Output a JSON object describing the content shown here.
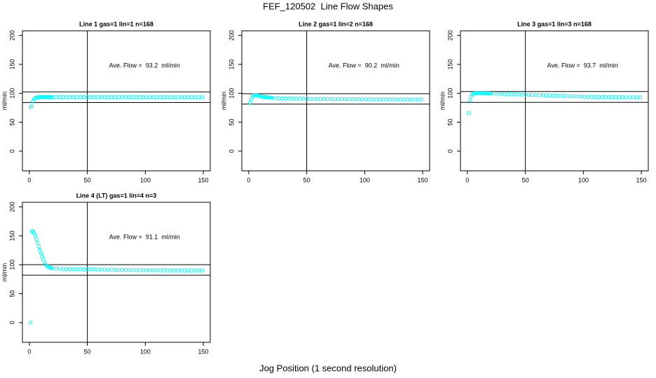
{
  "title": "FEF_120502  Line Flow Shapes",
  "xlabel": "Jog Position (1 second resolution)",
  "chart_data": [
    {
      "type": "scatter",
      "title": "Line 1 gas=1 lin=1 n=168",
      "ylabel": "ml/min",
      "annotation": "Ave. Flow =  93.2  ml/min",
      "color": "#00ffff",
      "xlim": [
        -6,
        156
      ],
      "ylim": [
        -34,
        208
      ],
      "xticks": [
        0,
        50,
        100,
        150
      ],
      "yticks": [
        0,
        50,
        100,
        150,
        200
      ],
      "hlines": [
        102.5,
        83.9
      ],
      "vline": 50,
      "x": [
        1,
        2,
        3,
        4,
        5,
        6,
        7,
        8,
        9,
        10,
        11,
        12,
        13,
        14,
        15,
        16,
        17,
        18,
        19,
        20,
        23,
        26,
        29,
        32,
        35,
        38,
        41,
        44,
        47,
        50,
        53,
        56,
        59,
        62,
        65,
        68,
        71,
        74,
        77,
        80,
        83,
        86,
        89,
        92,
        95,
        98,
        101,
        104,
        107,
        110,
        113,
        116,
        119,
        122,
        125,
        128,
        131,
        134,
        137,
        140,
        143,
        146,
        149
      ],
      "values": [
        76,
        78,
        86,
        90,
        92,
        92.8,
        93.2,
        93.4,
        93.5,
        93.5,
        93.5,
        93.5,
        93.5,
        93.5,
        93.5,
        93.5,
        93.5,
        93.5,
        93.5,
        93.5,
        93.5,
        93.5,
        93.5,
        93.5,
        93.5,
        93.5,
        93.5,
        93.5,
        93.5,
        93.5,
        93.5,
        93.4,
        93.4,
        93.4,
        93.4,
        93.4,
        93.4,
        93.4,
        93.4,
        93.4,
        93.4,
        93.4,
        93.4,
        93.4,
        93.4,
        93.3,
        93.3,
        93.3,
        93.3,
        93.3,
        93.3,
        93.3,
        93.3,
        93.3,
        93.3,
        93.3,
        93.3,
        93.3,
        93.3,
        93.3,
        93.3,
        93.3,
        93.3
      ]
    },
    {
      "type": "scatter",
      "title": "Line 2 gas=1 lin=2 n=168",
      "ylabel": "ml/min",
      "annotation": "Ave. Flow =  90.2  ml/min",
      "color": "#00ffff",
      "xlim": [
        -6,
        156
      ],
      "ylim": [
        -34,
        208
      ],
      "xticks": [
        0,
        50,
        100,
        150
      ],
      "yticks": [
        0,
        50,
        100,
        150,
        200
      ],
      "hlines": [
        99.2,
        81.2
      ],
      "vline": 50,
      "x": [
        1,
        2,
        3,
        4,
        5,
        6,
        7,
        8,
        9,
        10,
        11,
        12,
        13,
        14,
        15,
        16,
        17,
        18,
        19,
        20,
        23,
        26,
        29,
        32,
        35,
        38,
        41,
        44,
        47,
        50,
        53,
        56,
        59,
        62,
        65,
        68,
        71,
        74,
        77,
        80,
        83,
        86,
        89,
        92,
        95,
        98,
        101,
        104,
        107,
        110,
        113,
        116,
        119,
        122,
        125,
        128,
        131,
        134,
        137,
        140,
        143,
        146,
        149
      ],
      "values": [
        84,
        90,
        95,
        96.5,
        97,
        97,
        96.5,
        96,
        95.5,
        95,
        94.7,
        94.3,
        94,
        93.7,
        93.4,
        93.1,
        92.9,
        92.7,
        92.5,
        92.3,
        92,
        91.7,
        91.4,
        91.2,
        91,
        90.9,
        90.8,
        90.7,
        90.6,
        90.5,
        90.4,
        90.3,
        90.3,
        90.2,
        90.2,
        90.1,
        90.1,
        90,
        90,
        90,
        89.9,
        89.9,
        89.9,
        89.8,
        89.8,
        89.8,
        89.7,
        89.7,
        89.7,
        89.7,
        89.6,
        89.6,
        89.6,
        89.6,
        89.6,
        89.5,
        89.5,
        89.5,
        89.5,
        89.5,
        89.5,
        89.5,
        89.5
      ]
    },
    {
      "type": "scatter",
      "title": "Line 3 gas=1 lin=3 n=168",
      "ylabel": "ml/min",
      "annotation": "Ave. Flow =  93.7  ml/min",
      "color": "#00ffff",
      "xlim": [
        -6,
        156
      ],
      "ylim": [
        -34,
        208
      ],
      "xticks": [
        0,
        50,
        100,
        150
      ],
      "yticks": [
        0,
        50,
        100,
        150,
        200
      ],
      "hlines": [
        103.1,
        84.3
      ],
      "vline": 50,
      "x": [
        1,
        2,
        3,
        4,
        5,
        6,
        7,
        8,
        9,
        10,
        11,
        12,
        13,
        14,
        15,
        16,
        17,
        18,
        19,
        20,
        23,
        26,
        29,
        32,
        35,
        38,
        41,
        44,
        47,
        50,
        53,
        56,
        59,
        62,
        65,
        68,
        71,
        74,
        77,
        80,
        83,
        86,
        89,
        92,
        95,
        98,
        101,
        104,
        107,
        110,
        113,
        116,
        119,
        122,
        125,
        128,
        131,
        134,
        137,
        140,
        143,
        146,
        149
      ],
      "values": [
        66,
        88,
        95,
        98,
        99.5,
        100,
        100.3,
        100.3,
        100.3,
        100.3,
        100.2,
        100.2,
        100.1,
        100.1,
        100,
        100,
        99.9,
        99.9,
        99.8,
        99.8,
        99.6,
        99.4,
        99.2,
        99,
        98.8,
        98.6,
        98.4,
        98.2,
        98,
        97.8,
        97.6,
        97.4,
        97.2,
        97,
        96.8,
        96.5,
        96.3,
        96.1,
        95.9,
        95.7,
        95.5,
        95.3,
        95.1,
        94.9,
        94.7,
        94.5,
        94.3,
        94.2,
        94.1,
        94,
        93.9,
        93.8,
        93.7,
        93.6,
        93.5,
        93.4,
        93.3,
        93.3,
        93.2,
        93.2,
        93.1,
        93.1,
        93
      ]
    },
    {
      "type": "scatter",
      "title": "Line 4 (LT) gas=1 lin=4 n=3",
      "ylabel": "ml/min",
      "annotation": "Ave. Flow =  91.1  ml/min",
      "color": "#00ffff",
      "xlim": [
        -6,
        156
      ],
      "ylim": [
        -34,
        208
      ],
      "xticks": [
        0,
        50,
        100,
        150
      ],
      "yticks": [
        0,
        50,
        100,
        150,
        200
      ],
      "hlines": [
        100.2,
        82
      ],
      "vline": 50,
      "x": [
        1,
        2,
        3,
        4,
        5,
        6,
        7,
        8,
        9,
        10,
        11,
        12,
        13,
        14,
        15,
        16,
        17,
        18,
        19,
        20,
        23,
        26,
        29,
        32,
        35,
        38,
        41,
        44,
        47,
        50,
        53,
        56,
        59,
        62,
        65,
        68,
        71,
        74,
        77,
        80,
        83,
        86,
        89,
        92,
        95,
        98,
        101,
        104,
        107,
        110,
        113,
        116,
        119,
        122,
        125,
        128,
        131,
        134,
        137,
        140,
        143,
        146,
        149
      ],
      "values": [
        0,
        158,
        158,
        155,
        150,
        144,
        138,
        132,
        126,
        120,
        114,
        109,
        104,
        101,
        98.5,
        97,
        96,
        95,
        94.5,
        94,
        93.5,
        93.2,
        93,
        92.9,
        92.8,
        92.7,
        92.6,
        92.5,
        92.4,
        92.3,
        92.2,
        92.1,
        92,
        91.9,
        91.8,
        91.7,
        91.6,
        91.5,
        91.4,
        91.3,
        91.2,
        91.1,
        91.1,
        91,
        91,
        90.9,
        90.9,
        90.8,
        90.8,
        90.8,
        90.7,
        90.7,
        90.7,
        90.6,
        90.6,
        90.6,
        90.6,
        90.5,
        90.5,
        90.5,
        90.5,
        90.5,
        90.5
      ]
    }
  ]
}
